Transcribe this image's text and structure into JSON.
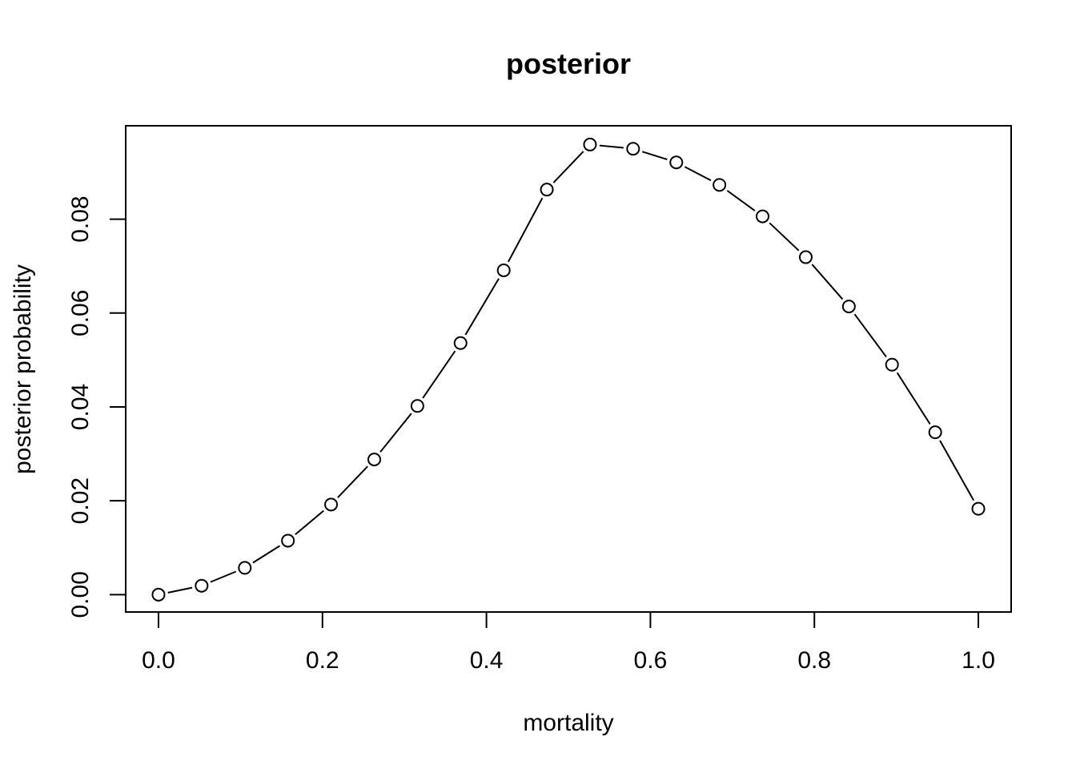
{
  "chart_data": {
    "type": "line",
    "title": "posterior",
    "xlabel": "mortality",
    "ylabel": "posterior probability",
    "xlim": [
      -0.04,
      1.04
    ],
    "ylim": [
      -0.0037,
      0.0999
    ],
    "x_ticks": [
      0.0,
      0.2,
      0.4,
      0.6,
      0.8,
      1.0
    ],
    "x_tick_labels": [
      "0.0",
      "0.2",
      "0.4",
      "0.6",
      "0.8",
      "1.0"
    ],
    "y_ticks": [
      0.0,
      0.02,
      0.04,
      0.06,
      0.08
    ],
    "y_tick_labels": [
      "0.00",
      "0.02",
      "0.04",
      "0.06",
      "0.08"
    ],
    "grid": false,
    "marker": "open-circle",
    "line_style": "segments between points",
    "series": [
      {
        "x": [
          0.0,
          0.0526,
          0.1053,
          0.1579,
          0.2105,
          0.2632,
          0.3158,
          0.3684,
          0.4211,
          0.4737,
          0.5263,
          0.5789,
          0.6316,
          0.6842,
          0.7368,
          0.7895,
          0.8421,
          0.8947,
          0.9474,
          1.0
        ],
        "values": [
          0.0,
          0.0019,
          0.0057,
          0.0115,
          0.0192,
          0.0288,
          0.0402,
          0.0536,
          0.0691,
          0.0863,
          0.0959,
          0.095,
          0.0921,
          0.0873,
          0.0806,
          0.0719,
          0.0614,
          0.049,
          0.0346,
          0.0183
        ]
      }
    ]
  }
}
